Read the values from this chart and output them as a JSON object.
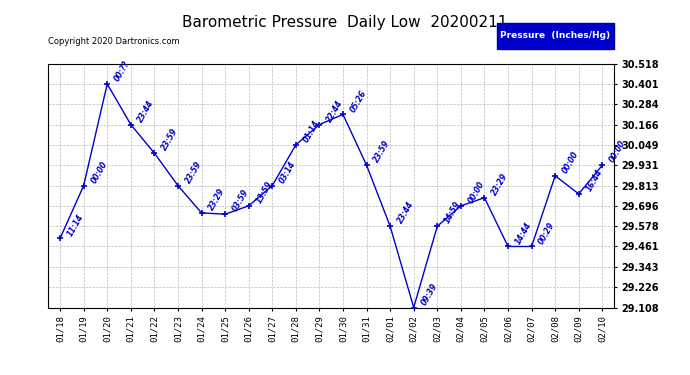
{
  "title": "Barometric Pressure  Daily Low  20200211",
  "copyright": "Copyright 2020 Dartronics.com",
  "legend_label": "Pressure  (Inches/Hg)",
  "background_color": "#ffffff",
  "line_color": "#0000cc",
  "grid_color": "#bbbbbb",
  "x_labels": [
    "01/18",
    "01/19",
    "01/20",
    "01/21",
    "01/22",
    "01/23",
    "01/24",
    "01/25",
    "01/26",
    "01/27",
    "01/28",
    "01/29",
    "01/30",
    "01/31",
    "02/01",
    "02/02",
    "02/03",
    "02/04",
    "02/05",
    "02/06",
    "02/07",
    "02/08",
    "02/09",
    "02/10"
  ],
  "y_values": [
    29.508,
    29.813,
    30.401,
    30.166,
    30.001,
    29.813,
    29.655,
    29.648,
    29.696,
    29.813,
    30.049,
    30.166,
    30.225,
    29.931,
    29.578,
    29.108,
    29.578,
    29.696,
    29.743,
    29.461,
    29.461,
    29.87,
    29.765,
    29.931
  ],
  "point_labels": [
    "11:14",
    "00:00",
    "00:??",
    "23:44",
    "23:59",
    "23:59",
    "23:29",
    "03:59",
    "13:59",
    "03:14",
    "01:14",
    "22:44",
    "05:26",
    "23:59",
    "23:44",
    "09:39",
    "14:59",
    "00:00",
    "23:29",
    "14:44",
    "00:29",
    "00:00",
    "16:44",
    "00:00"
  ],
  "ylim_min": 29.108,
  "ylim_max": 30.518,
  "yticks": [
    29.108,
    29.226,
    29.343,
    29.461,
    29.578,
    29.696,
    29.813,
    29.931,
    30.049,
    30.166,
    30.284,
    30.401,
    30.518
  ]
}
